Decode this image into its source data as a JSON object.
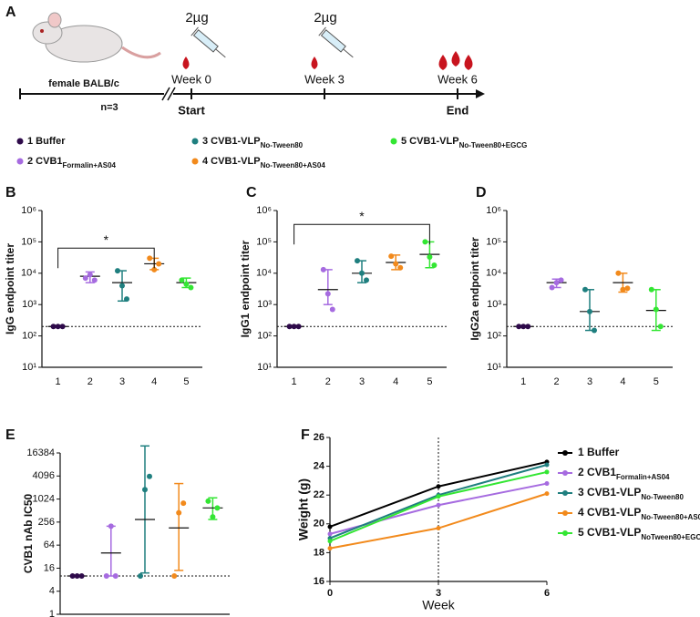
{
  "timeline": {
    "panel": "A",
    "mouse": "female BALB/c",
    "n": "n=3",
    "dose_1": "2µg",
    "dose_2": "2µg",
    "week_0": "Week 0",
    "week_3": "Week 3",
    "week_6": "Week 6",
    "start": "Start",
    "end": "End"
  },
  "legend": {
    "items": [
      {
        "name": "1 Buffer",
        "color": "#2e0a4a"
      },
      {
        "name": "2 CVB1",
        "subscript": "Formalin+AS04",
        "color": "#a66be0"
      },
      {
        "name": "3 CVB1-VLP",
        "subscript": "No-Tween80",
        "color": "#1f7f7f"
      },
      {
        "name": "4 CVB1-VLP",
        "subscript": "No-Tween80+AS04",
        "color": "#f28a1c"
      },
      {
        "name": "5 CVB1-VLP",
        "subscript": "No-Tween80+EGCG",
        "color": "#33e633"
      }
    ]
  },
  "chart_data": [
    {
      "type": "dot",
      "panel": "B",
      "y_label": "IgG endpoint titer",
      "yscale": "log",
      "ylim": [
        10,
        1000000
      ],
      "yticks": [
        {
          "value": 10,
          "label": "10¹"
        },
        {
          "value": 100,
          "label": "10²"
        },
        {
          "value": 1000,
          "label": "10³"
        },
        {
          "value": 10000,
          "label": "10⁴"
        },
        {
          "value": 100000,
          "label": "10⁵"
        },
        {
          "value": 1000000,
          "label": "10⁶"
        }
      ],
      "categories": [
        "1",
        "2",
        "3",
        "4",
        "5"
      ],
      "reference_line": 200,
      "groups": [
        {
          "color": "#2e0a4a",
          "values": [
            200,
            200,
            200
          ],
          "mean": 200,
          "error_range": [
            200,
            200
          ]
        },
        {
          "color": "#a66be0",
          "values": [
            7000,
            9000,
            6000
          ],
          "mean": 8000,
          "error_range": [
            5000,
            11000
          ]
        },
        {
          "color": "#1f7f7f",
          "values": [
            12000,
            4000,
            1500
          ],
          "mean": 5000,
          "error_range": [
            1300,
            12000
          ]
        },
        {
          "color": "#f28a1c",
          "values": [
            30000,
            13000,
            20000
          ],
          "mean": 20000,
          "error_range": [
            13000,
            30000
          ]
        },
        {
          "color": "#33e633",
          "values": [
            6000,
            4500,
            3500
          ],
          "mean": 5000,
          "error_range": [
            3500,
            7000
          ]
        }
      ],
      "annotations": [
        {
          "between": [
            "1",
            "4"
          ],
          "y": 63000,
          "text": "*"
        }
      ]
    },
    {
      "type": "dot",
      "panel": "C",
      "y_label": "IgG1 endpoint titer",
      "yscale": "log",
      "ylim": [
        10,
        1000000
      ],
      "yticks": [
        {
          "value": 10,
          "label": "10¹"
        },
        {
          "value": 100,
          "label": "10²"
        },
        {
          "value": 1000,
          "label": "10³"
        },
        {
          "value": 10000,
          "label": "10⁴"
        },
        {
          "value": 100000,
          "label": "10⁵"
        },
        {
          "value": 1000000,
          "label": "10⁶"
        }
      ],
      "categories": [
        "1",
        "2",
        "3",
        "4",
        "5"
      ],
      "reference_line": 200,
      "groups": [
        {
          "color": "#2e0a4a",
          "values": [
            200,
            200,
            200
          ],
          "mean": 200,
          "error_range": [
            200,
            200
          ]
        },
        {
          "color": "#a66be0",
          "values": [
            13000,
            2200,
            700
          ],
          "mean": 3000,
          "error_range": [
            1000,
            13000
          ]
        },
        {
          "color": "#1f7f7f",
          "values": [
            25000,
            10000,
            6000
          ],
          "mean": 10000,
          "error_range": [
            5000,
            25000
          ]
        },
        {
          "color": "#f28a1c",
          "values": [
            35000,
            20000,
            15000
          ],
          "mean": 22000,
          "error_range": [
            13000,
            38000
          ]
        },
        {
          "color": "#33e633",
          "values": [
            100000,
            33000,
            18000
          ],
          "mean": 40000,
          "error_range": [
            15000,
            100000
          ]
        }
      ],
      "annotations": [
        {
          "between": [
            "1",
            "5"
          ],
          "y": 360000,
          "text": "*"
        }
      ]
    },
    {
      "type": "dot",
      "panel": "D",
      "y_label": "IgG2a endpoint titer",
      "yscale": "log",
      "ylim": [
        10,
        1000000
      ],
      "yticks": [
        {
          "value": 10,
          "label": "10¹"
        },
        {
          "value": 100,
          "label": "10²"
        },
        {
          "value": 1000,
          "label": "10³"
        },
        {
          "value": 10000,
          "label": "10⁴"
        },
        {
          "value": 100000,
          "label": "10⁵"
        },
        {
          "value": 1000000,
          "label": "10⁶"
        }
      ],
      "categories": [
        "1",
        "2",
        "3",
        "4",
        "5"
      ],
      "reference_line": 200,
      "groups": [
        {
          "color": "#2e0a4a",
          "values": [
            200,
            200,
            200
          ],
          "mean": 200,
          "error_range": [
            200,
            200
          ]
        },
        {
          "color": "#a66be0",
          "values": [
            3500,
            5000,
            6000
          ],
          "mean": 5000,
          "error_range": [
            3500,
            6500
          ]
        },
        {
          "color": "#1f7f7f",
          "values": [
            3000,
            600,
            150
          ],
          "mean": 600,
          "error_range": [
            150,
            3000
          ]
        },
        {
          "color": "#f28a1c",
          "values": [
            10000,
            3000,
            3300
          ],
          "mean": 5000,
          "error_range": [
            2500,
            10000
          ]
        },
        {
          "color": "#33e633",
          "values": [
            3000,
            700,
            200
          ],
          "mean": 650,
          "error_range": [
            150,
            3000
          ]
        }
      ]
    },
    {
      "type": "dot",
      "panel": "E",
      "y_label": "CVB1 nAb IC50",
      "yscale": "log",
      "ylim": [
        1,
        16384
      ],
      "yticks": [
        1,
        4,
        16,
        64,
        256,
        1024,
        4096,
        16384
      ],
      "categories": [
        "1",
        "2",
        "3",
        "4",
        "5"
      ],
      "reference_line": 10,
      "groups": [
        {
          "color": "#2e0a4a",
          "values": [
            10,
            10,
            10
          ],
          "mean": 10,
          "error_range": [
            10,
            10
          ]
        },
        {
          "color": "#a66be0",
          "values": [
            10,
            200,
            10
          ],
          "mean": 40,
          "error_range": [
            10,
            200
          ]
        },
        {
          "color": "#1f7f7f",
          "values": [
            10,
            1800,
            4000
          ],
          "mean": 300,
          "error_range": [
            12,
            25000
          ]
        },
        {
          "color": "#f28a1c",
          "values": [
            10,
            450,
            800
          ],
          "mean": 180,
          "error_range": [
            14,
            2600
          ]
        },
        {
          "color": "#33e633",
          "values": [
            900,
            350,
            600
          ],
          "mean": 600,
          "error_range": [
            300,
            1100
          ]
        }
      ]
    },
    {
      "type": "line",
      "panel": "F",
      "x_label": "Week",
      "y_label": "Weight (g)",
      "x": [
        0,
        3,
        6
      ],
      "xlim": [
        0,
        6
      ],
      "xticks": [
        0,
        3,
        6
      ],
      "ylim": [
        16,
        26
      ],
      "yticks": [
        16,
        18,
        20,
        22,
        24,
        26
      ],
      "reference_x": 3,
      "series": [
        {
          "name": "1 Buffer",
          "color": "#000000",
          "values": [
            19.8,
            22.6,
            24.3
          ]
        },
        {
          "name": "2 CVB1",
          "subscript": "Formalin+AS04",
          "color": "#a66be0",
          "values": [
            19.3,
            21.3,
            22.8
          ]
        },
        {
          "name": "3 CVB1-VLP",
          "subscript": "No-Tween80",
          "color": "#1f7f7f",
          "values": [
            19.0,
            22.0,
            24.1
          ]
        },
        {
          "name": "4 CVB1-VLP",
          "subscript": "No-Tween80+AS04",
          "color": "#f28a1c",
          "values": [
            18.3,
            19.7,
            22.1
          ]
        },
        {
          "name": "5 CVB1-VLP",
          "subscript": "NoTween80+EGCG",
          "color": "#33e633",
          "values": [
            18.8,
            21.9,
            23.6
          ]
        }
      ]
    }
  ]
}
